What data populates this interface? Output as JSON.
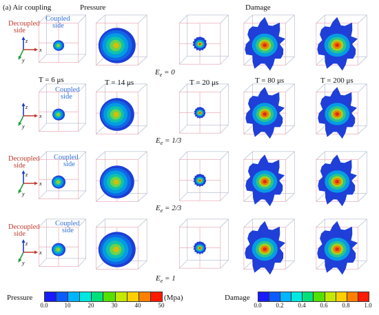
{
  "header": {
    "panel_label": "(a) Air coupling",
    "pressure": "Pressure",
    "damage": "Damage"
  },
  "side_labels": {
    "decoupled": [
      "Decoupled",
      "side"
    ],
    "coupled": [
      "Coupled",
      "side"
    ]
  },
  "axes": {
    "z": "z",
    "x": "x",
    "y": "y"
  },
  "time_labels": [
    "T = 6 μs",
    "T = 14 μs",
    "T = 20 μs",
    "T = 80 μs",
    "T = 200 μs"
  ],
  "rows": [
    {
      "ee_symbol": "E",
      "ee_sub": "e",
      "ee_value": "= 0"
    },
    {
      "ee_symbol": "E",
      "ee_sub": "e",
      "ee_value": "= 1/3"
    },
    {
      "ee_symbol": "E",
      "ee_sub": "e",
      "ee_value": "= 2/3"
    },
    {
      "ee_symbol": "E",
      "ee_sub": "e",
      "ee_value": "= 1"
    }
  ],
  "pressure_colorbar": {
    "title": "Pressure",
    "unit": "(Mpa)",
    "ticks": [
      "0.0",
      "10",
      "20",
      "30",
      "40",
      "50"
    ],
    "colors": [
      "#1a1aff",
      "#0b5cff",
      "#00b4ff",
      "#00e8e0",
      "#00e07a",
      "#54e000",
      "#c4e800",
      "#ffd000",
      "#ff8000",
      "#ff1a00"
    ]
  },
  "damage_colorbar": {
    "title": "Damage",
    "ticks": [
      "0.0",
      "0.2",
      "0.4",
      "0.6",
      "0.8",
      "1.0"
    ],
    "colors": [
      "#1a1aff",
      "#0b5cff",
      "#00b4ff",
      "#00e8e0",
      "#00e07a",
      "#54e000",
      "#c4e800",
      "#ffd000",
      "#ff8000",
      "#ff1a00"
    ]
  }
}
